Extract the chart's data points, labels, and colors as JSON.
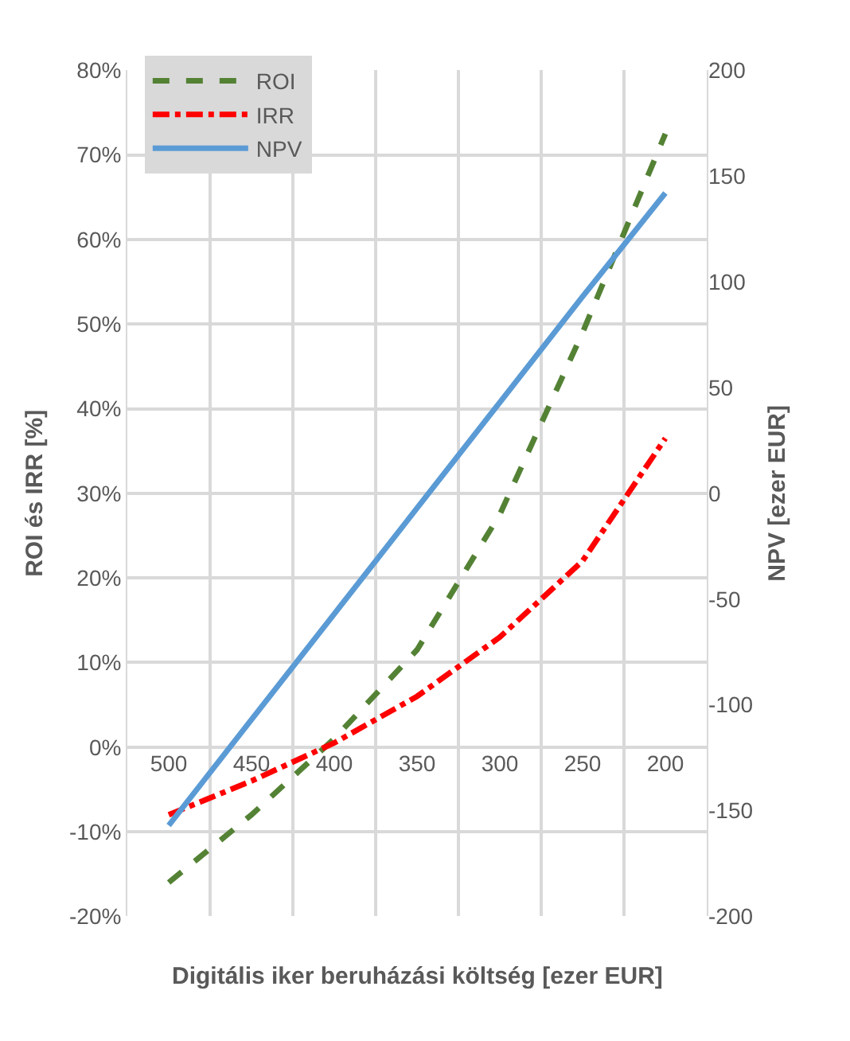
{
  "chart_data": {
    "type": "line",
    "xlabel": "Digitális iker beruházási költség [ezer EUR]",
    "ylabel": "ROI és IRR [%]",
    "y2label": "NPV [ezer EUR]",
    "categories": [
      "500",
      "450",
      "400",
      "350",
      "300",
      "250",
      "200"
    ],
    "series": [
      {
        "name": "ROI",
        "color": "#548235",
        "line_style": "dashed",
        "values": [
          -16,
          -8,
          1,
          11.5,
          27.5,
          49,
          72.5
        ]
      },
      {
        "name": "IRR",
        "color": "#ff0000",
        "line_style": "dashdot",
        "values": [
          -8,
          -4,
          0.5,
          6,
          13,
          22,
          36.5
        ]
      },
      {
        "name": "NPV",
        "color": "#5b9bd5",
        "line_style": "solid",
        "axis": "y2",
        "values": [
          -157,
          -107,
          -57,
          -7,
          43,
          93,
          142
        ]
      }
    ],
    "ylim": [
      -20,
      80
    ],
    "yticks": [
      {
        "value": -20,
        "label": "-20%"
      },
      {
        "value": -10,
        "label": "-10%"
      },
      {
        "value": 0,
        "label": "0%"
      },
      {
        "value": 10,
        "label": "10%"
      },
      {
        "value": 20,
        "label": "20%"
      },
      {
        "value": 30,
        "label": "30%"
      },
      {
        "value": 40,
        "label": "40%"
      },
      {
        "value": 50,
        "label": "50%"
      },
      {
        "value": 60,
        "label": "60%"
      },
      {
        "value": 70,
        "label": "70%"
      },
      {
        "value": 80,
        "label": "80%"
      }
    ],
    "y2lim": [
      -200,
      200
    ],
    "y2ticks": [
      -200,
      -150,
      -100,
      -50,
      0,
      50,
      100,
      150,
      200
    ],
    "grid": true,
    "legend": "top left",
    "marker": "none"
  }
}
